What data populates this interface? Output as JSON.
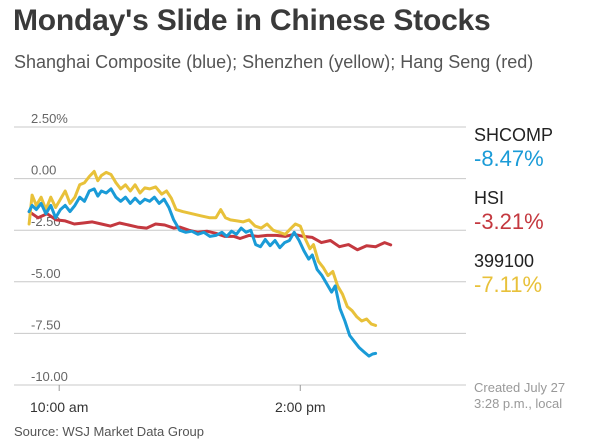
{
  "chart_data": {
    "type": "line",
    "title": "Monday's Slide in Chinese Stocks",
    "subtitle": "Shanghai Composite (blue); Shenzhen (yellow); Hang Seng (red)",
    "xlabel": "",
    "ylabel": "",
    "ylim": [
      -10,
      2.5
    ],
    "y_ticks": [
      {
        "value": 2.5,
        "label": "2.50%"
      },
      {
        "value": 0,
        "label": "0.00"
      },
      {
        "value": -2.5,
        "label": "-2.50"
      },
      {
        "value": -5,
        "label": "-5.00"
      },
      {
        "value": -7.5,
        "label": "-7.50"
      },
      {
        "value": -10,
        "label": "-10.00"
      }
    ],
    "xlim": [
      9.25,
      16.75
    ],
    "x_ticks": [
      {
        "value": 10,
        "label": "10:00 am"
      },
      {
        "value": 14,
        "label": "2:00 pm"
      }
    ],
    "grid": true,
    "series": [
      {
        "name": "Hang Seng",
        "ticker": "HSI",
        "value_label": "-3.21%",
        "color": "#c4383f",
        "points": [
          [
            9.5,
            -1.6
          ],
          [
            9.65,
            -1.9
          ],
          [
            9.8,
            -1.7
          ],
          [
            9.95,
            -2.0
          ],
          [
            10.1,
            -2.05
          ],
          [
            10.25,
            -2.2
          ],
          [
            10.4,
            -2.15
          ],
          [
            10.55,
            -2.1
          ],
          [
            10.7,
            -2.2
          ],
          [
            10.85,
            -2.3
          ],
          [
            11.0,
            -2.15
          ],
          [
            11.15,
            -2.25
          ],
          [
            11.3,
            -2.35
          ],
          [
            11.45,
            -2.4
          ],
          [
            11.6,
            -2.2
          ],
          [
            11.75,
            -2.25
          ],
          [
            11.9,
            -2.4
          ],
          [
            12.0,
            -2.35
          ],
          [
            12.15,
            -2.5
          ],
          [
            12.3,
            -2.6
          ],
          [
            12.45,
            -2.55
          ],
          [
            12.6,
            -2.65
          ],
          [
            12.75,
            -2.8
          ],
          [
            12.9,
            -2.8
          ],
          [
            13.0,
            -2.9
          ],
          [
            13.15,
            -2.75
          ],
          [
            13.3,
            -2.8
          ],
          [
            13.45,
            -2.75
          ],
          [
            13.6,
            -2.75
          ],
          [
            13.75,
            -2.8
          ],
          [
            13.9,
            -2.7
          ],
          [
            14.05,
            -2.8
          ],
          [
            14.2,
            -2.85
          ],
          [
            14.35,
            -3.1
          ],
          [
            14.5,
            -3.0
          ],
          [
            14.65,
            -3.3
          ],
          [
            14.8,
            -3.2
          ],
          [
            14.95,
            -3.45
          ],
          [
            15.1,
            -3.25
          ],
          [
            15.25,
            -3.3
          ],
          [
            15.4,
            -3.1
          ],
          [
            15.5,
            -3.21
          ]
        ]
      },
      {
        "name": "Shenzhen",
        "ticker": "399100",
        "value_label": "-7.11%",
        "color": "#e8c13a",
        "points": [
          [
            9.5,
            -2.2
          ],
          [
            9.55,
            -0.8
          ],
          [
            9.62,
            -1.3
          ],
          [
            9.7,
            -0.9
          ],
          [
            9.78,
            -1.5
          ],
          [
            9.86,
            -0.9
          ],
          [
            9.94,
            -1.4
          ],
          [
            10.02,
            -1.0
          ],
          [
            10.1,
            -0.6
          ],
          [
            10.18,
            -1.2
          ],
          [
            10.26,
            -0.9
          ],
          [
            10.34,
            -0.3
          ],
          [
            10.42,
            -0.2
          ],
          [
            10.5,
            0.1
          ],
          [
            10.58,
            0.35
          ],
          [
            10.64,
            -0.1
          ],
          [
            10.7,
            0.15
          ],
          [
            10.78,
            0.3
          ],
          [
            10.86,
            0.2
          ],
          [
            10.94,
            -0.2
          ],
          [
            11.02,
            -0.5
          ],
          [
            11.1,
            -0.3
          ],
          [
            11.18,
            -0.6
          ],
          [
            11.26,
            -0.3
          ],
          [
            11.34,
            -0.7
          ],
          [
            11.42,
            -0.45
          ],
          [
            11.5,
            -0.5
          ],
          [
            11.6,
            -0.4
          ],
          [
            11.7,
            -0.75
          ],
          [
            11.78,
            -0.6
          ],
          [
            11.86,
            -0.95
          ],
          [
            11.94,
            -1.5
          ],
          [
            12.05,
            -1.6
          ],
          [
            12.2,
            -1.7
          ],
          [
            12.35,
            -1.8
          ],
          [
            12.5,
            -1.9
          ],
          [
            12.6,
            -1.9
          ],
          [
            12.68,
            -1.5
          ],
          [
            12.76,
            -1.9
          ],
          [
            12.84,
            -2.0
          ],
          [
            12.95,
            -2.05
          ],
          [
            13.05,
            -2.1
          ],
          [
            13.15,
            -2.0
          ],
          [
            13.25,
            -2.3
          ],
          [
            13.35,
            -2.4
          ],
          [
            13.45,
            -2.2
          ],
          [
            13.55,
            -2.5
          ],
          [
            13.65,
            -2.6
          ],
          [
            13.75,
            -2.7
          ],
          [
            13.85,
            -2.4
          ],
          [
            13.92,
            -2.2
          ],
          [
            14.0,
            -2.3
          ],
          [
            14.08,
            -2.9
          ],
          [
            14.16,
            -3.4
          ],
          [
            14.22,
            -3.2
          ],
          [
            14.3,
            -4.0
          ],
          [
            14.38,
            -4.3
          ],
          [
            14.46,
            -4.7
          ],
          [
            14.54,
            -4.5
          ],
          [
            14.62,
            -5.2
          ],
          [
            14.7,
            -5.6
          ],
          [
            14.78,
            -6.2
          ],
          [
            14.86,
            -6.4
          ],
          [
            14.94,
            -6.7
          ],
          [
            15.02,
            -6.9
          ],
          [
            15.1,
            -6.8
          ],
          [
            15.18,
            -7.05
          ],
          [
            15.25,
            -7.11
          ]
        ]
      },
      {
        "name": "Shanghai Composite",
        "ticker": "SHCOMP",
        "value_label": "-8.47%",
        "color": "#1a9bd7",
        "points": [
          [
            9.5,
            -1.6
          ],
          [
            9.55,
            -1.3
          ],
          [
            9.62,
            -1.5
          ],
          [
            9.7,
            -1.2
          ],
          [
            9.78,
            -1.7
          ],
          [
            9.86,
            -1.3
          ],
          [
            9.94,
            -1.9
          ],
          [
            10.02,
            -1.5
          ],
          [
            10.1,
            -1.3
          ],
          [
            10.18,
            -1.6
          ],
          [
            10.26,
            -1.3
          ],
          [
            10.34,
            -0.9
          ],
          [
            10.42,
            -1.1
          ],
          [
            10.5,
            -0.6
          ],
          [
            10.58,
            -0.5
          ],
          [
            10.64,
            -0.85
          ],
          [
            10.7,
            -0.6
          ],
          [
            10.78,
            -0.7
          ],
          [
            10.86,
            -0.5
          ],
          [
            10.94,
            -0.9
          ],
          [
            11.02,
            -1.1
          ],
          [
            11.1,
            -0.9
          ],
          [
            11.18,
            -1.2
          ],
          [
            11.26,
            -0.95
          ],
          [
            11.34,
            -1.2
          ],
          [
            11.42,
            -1.0
          ],
          [
            11.5,
            -1.1
          ],
          [
            11.58,
            -0.9
          ],
          [
            11.66,
            -1.2
          ],
          [
            11.74,
            -1.0
          ],
          [
            11.82,
            -1.4
          ],
          [
            11.9,
            -2.0
          ],
          [
            12.0,
            -2.5
          ],
          [
            12.1,
            -2.6
          ],
          [
            12.2,
            -2.55
          ],
          [
            12.3,
            -2.7
          ],
          [
            12.4,
            -2.6
          ],
          [
            12.5,
            -2.8
          ],
          [
            12.6,
            -2.75
          ],
          [
            12.7,
            -2.6
          ],
          [
            12.78,
            -2.8
          ],
          [
            12.86,
            -2.55
          ],
          [
            12.94,
            -2.7
          ],
          [
            13.02,
            -2.4
          ],
          [
            13.1,
            -2.6
          ],
          [
            13.18,
            -2.5
          ],
          [
            13.26,
            -3.2
          ],
          [
            13.34,
            -3.3
          ],
          [
            13.42,
            -2.95
          ],
          [
            13.5,
            -3.25
          ],
          [
            13.58,
            -3.0
          ],
          [
            13.66,
            -3.35
          ],
          [
            13.74,
            -3.1
          ],
          [
            13.82,
            -3.0
          ],
          [
            13.9,
            -2.6
          ],
          [
            13.98,
            -3.0
          ],
          [
            14.06,
            -3.5
          ],
          [
            14.14,
            -3.9
          ],
          [
            14.2,
            -3.7
          ],
          [
            14.28,
            -4.4
          ],
          [
            14.36,
            -4.7
          ],
          [
            14.44,
            -5.1
          ],
          [
            14.52,
            -5.5
          ],
          [
            14.58,
            -5.2
          ],
          [
            14.66,
            -6.3
          ],
          [
            14.74,
            -6.9
          ],
          [
            14.82,
            -7.6
          ],
          [
            14.9,
            -7.9
          ],
          [
            14.98,
            -8.2
          ],
          [
            15.06,
            -8.4
          ],
          [
            15.14,
            -8.6
          ],
          [
            15.2,
            -8.5
          ],
          [
            15.25,
            -8.47
          ]
        ]
      }
    ]
  },
  "notes": {
    "created_line1": "Created July 27",
    "created_line2": "3:28 p.m., local",
    "source": "Source: WSJ Market Data Group"
  }
}
